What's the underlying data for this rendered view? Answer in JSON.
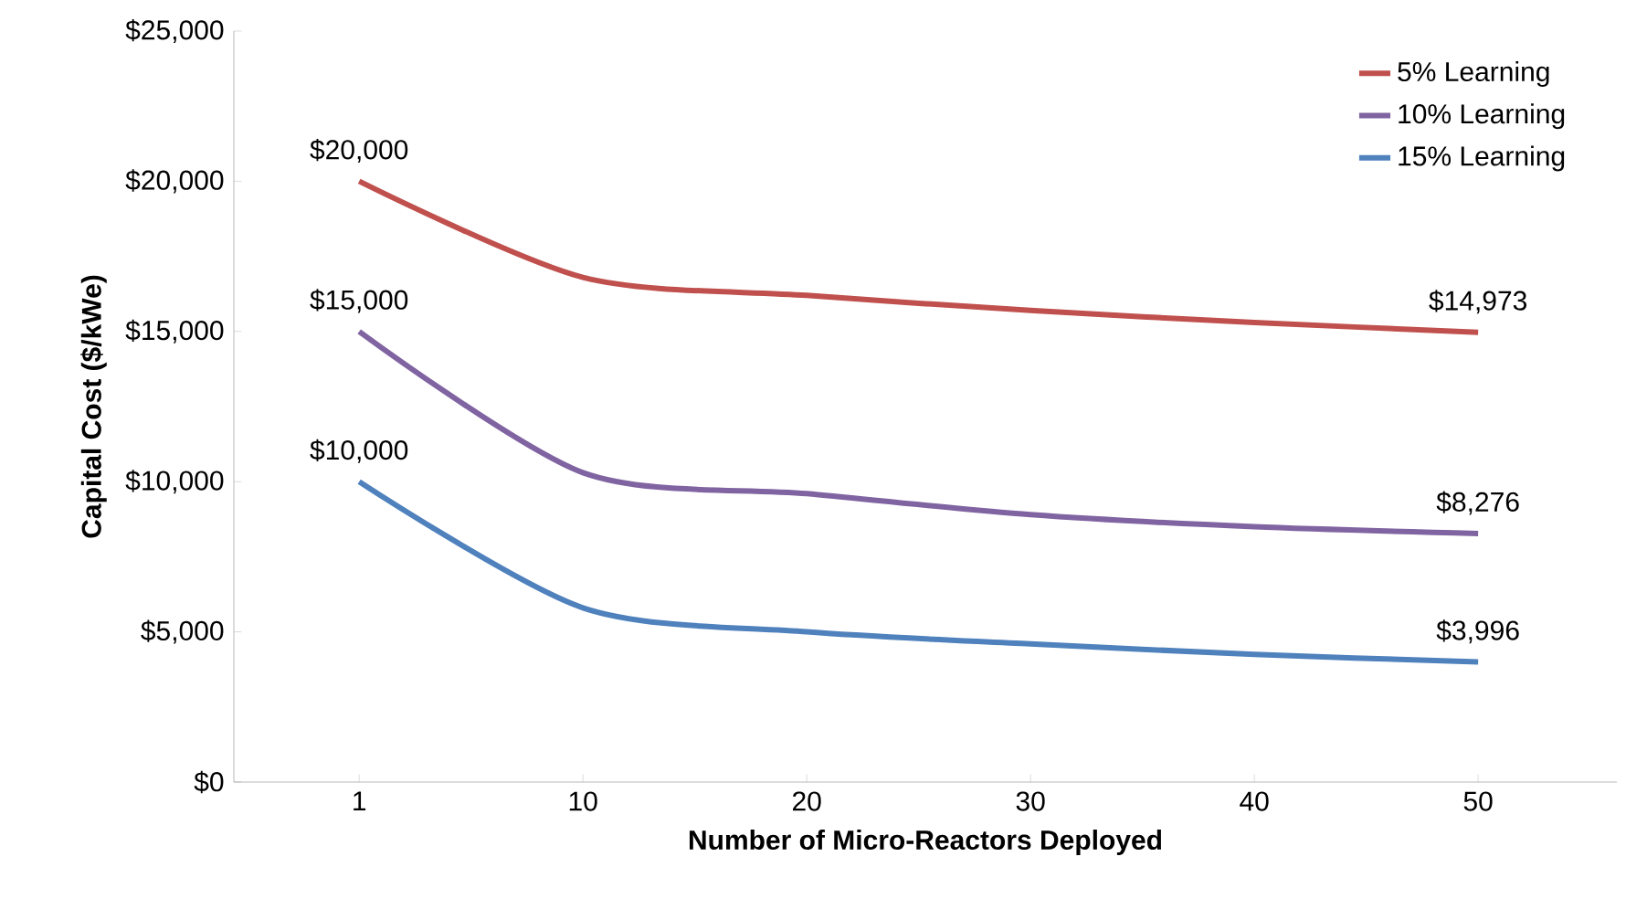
{
  "chart_data": {
    "type": "line",
    "xlabel": "Number of Micro-Reactors Deployed",
    "ylabel": "Capital Cost ($/kWe)",
    "categories": [
      "1",
      "10",
      "20",
      "30",
      "40",
      "50"
    ],
    "ylim": [
      0,
      25000
    ],
    "yticks": [
      {
        "value": 0,
        "label": "$0"
      },
      {
        "value": 5000,
        "label": "$5,000"
      },
      {
        "value": 10000,
        "label": "$10,000"
      },
      {
        "value": 15000,
        "label": "$15,000"
      },
      {
        "value": 20000,
        "label": "$20,000"
      },
      {
        "value": 25000,
        "label": "$25,000"
      }
    ],
    "legend": "top right",
    "grid": false,
    "marker": "none",
    "line_style": "solid",
    "series": [
      {
        "name": "5% Learning",
        "color": "#c0504d",
        "values": [
          20000,
          16800,
          16200,
          15700,
          15300,
          14973
        ],
        "value_labels": [
          "$20,000",
          null,
          null,
          null,
          null,
          "$14,973"
        ]
      },
      {
        "name": "10% Learning",
        "color": "#8064a2",
        "values": [
          15000,
          10300,
          9600,
          8900,
          8500,
          8276
        ],
        "value_labels": [
          "$15,000",
          null,
          null,
          null,
          null,
          "$8,276"
        ]
      },
      {
        "name": "15% Learning",
        "color": "#4f81bd",
        "values": [
          10000,
          5800,
          5000,
          4600,
          4250,
          3996
        ],
        "value_labels": [
          "$10,000",
          null,
          null,
          null,
          null,
          "$3,996"
        ]
      }
    ]
  }
}
